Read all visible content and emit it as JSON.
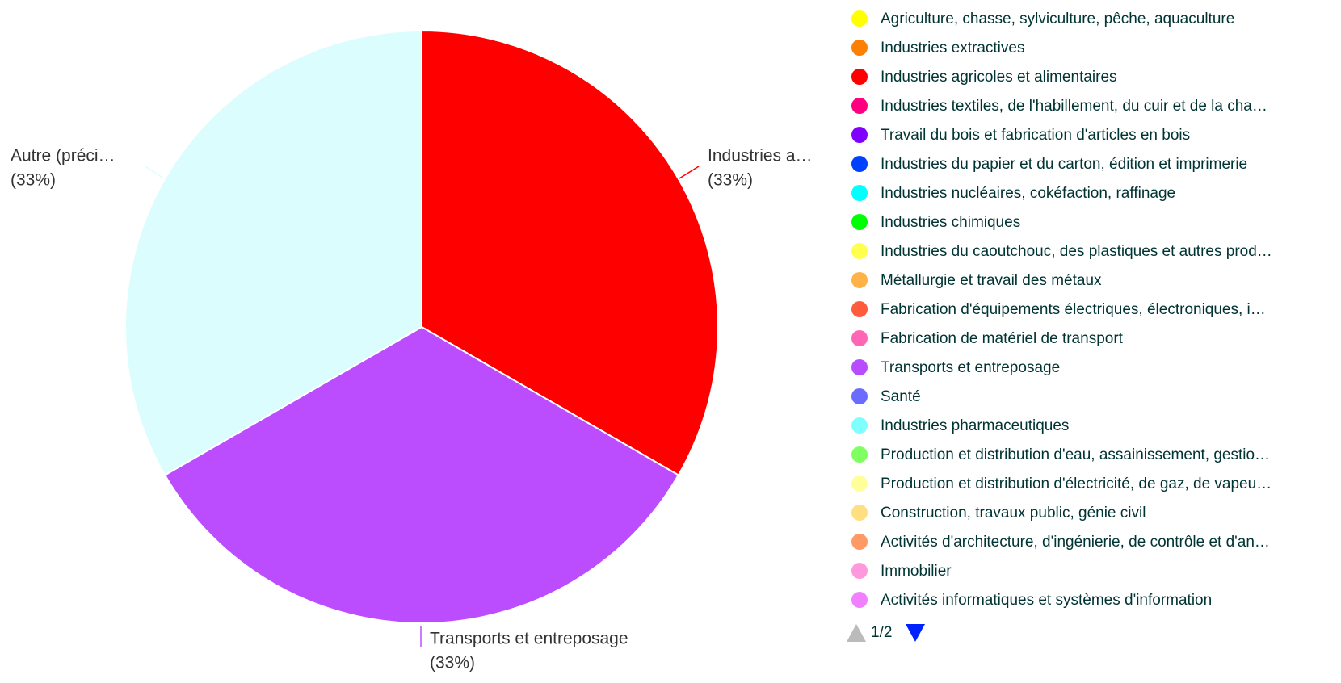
{
  "chart_data": {
    "type": "pie",
    "categories": [
      "Industries a…",
      "Transports et entreposage",
      "Autre (préci…"
    ],
    "values": [
      33,
      33,
      33
    ],
    "value_labels": [
      "(33%)",
      "(33%)",
      "(33%)"
    ],
    "colors": [
      "#ff0000",
      "#bb4dff",
      "#dcfdfd"
    ],
    "legend": {
      "items": [
        {
          "label": "Agriculture, chasse, sylviculture, pêche, aquaculture",
          "color": "#ffff00"
        },
        {
          "label": "Industries extractives",
          "color": "#ff7f00"
        },
        {
          "label": "Industries agricoles et alimentaires",
          "color": "#ff0000"
        },
        {
          "label": "Industries textiles, de l'habillement, du cuir et de la cha…",
          "color": "#ff0080"
        },
        {
          "label": "Travail du bois et fabrication d'articles en bois",
          "color": "#8000ff"
        },
        {
          "label": "Industries du papier et du carton, édition et imprimerie",
          "color": "#0040ff"
        },
        {
          "label": "Industries nucléaires, cokéfaction, raffinage",
          "color": "#00ffff"
        },
        {
          "label": "Industries chimiques",
          "color": "#00ff00"
        },
        {
          "label": "Industries du caoutchouc, des plastiques et autres prod…",
          "color": "#ffff4d"
        },
        {
          "label": "Métallurgie et travail des métaux",
          "color": "#ffb347"
        },
        {
          "label": "Fabrication d'équipements électriques, électroniques, i…",
          "color": "#ff5c3d"
        },
        {
          "label": "Fabrication de matériel de transport",
          "color": "#ff66b3"
        },
        {
          "label": "Transports et entreposage",
          "color": "#b84dff"
        },
        {
          "label": "Santé",
          "color": "#6b6bff"
        },
        {
          "label": "Industries pharmaceutiques",
          "color": "#80ffff"
        },
        {
          "label": "Production et distribution d'eau, assainissement, gestio…",
          "color": "#80ff60"
        },
        {
          "label": "Production et distribution d'électricité, de gaz, de vapeu…",
          "color": "#ffff99"
        },
        {
          "label": "Construction, travaux public, génie civil",
          "color": "#ffdf80"
        },
        {
          "label": "Activités d'architecture, d'ingénierie, de contrôle et d'an…",
          "color": "#ff9966"
        },
        {
          "label": "Immobilier",
          "color": "#ff99dd"
        },
        {
          "label": "Activités informatiques et systèmes d'information",
          "color": "#f080ff"
        }
      ],
      "page": "1/2"
    }
  }
}
